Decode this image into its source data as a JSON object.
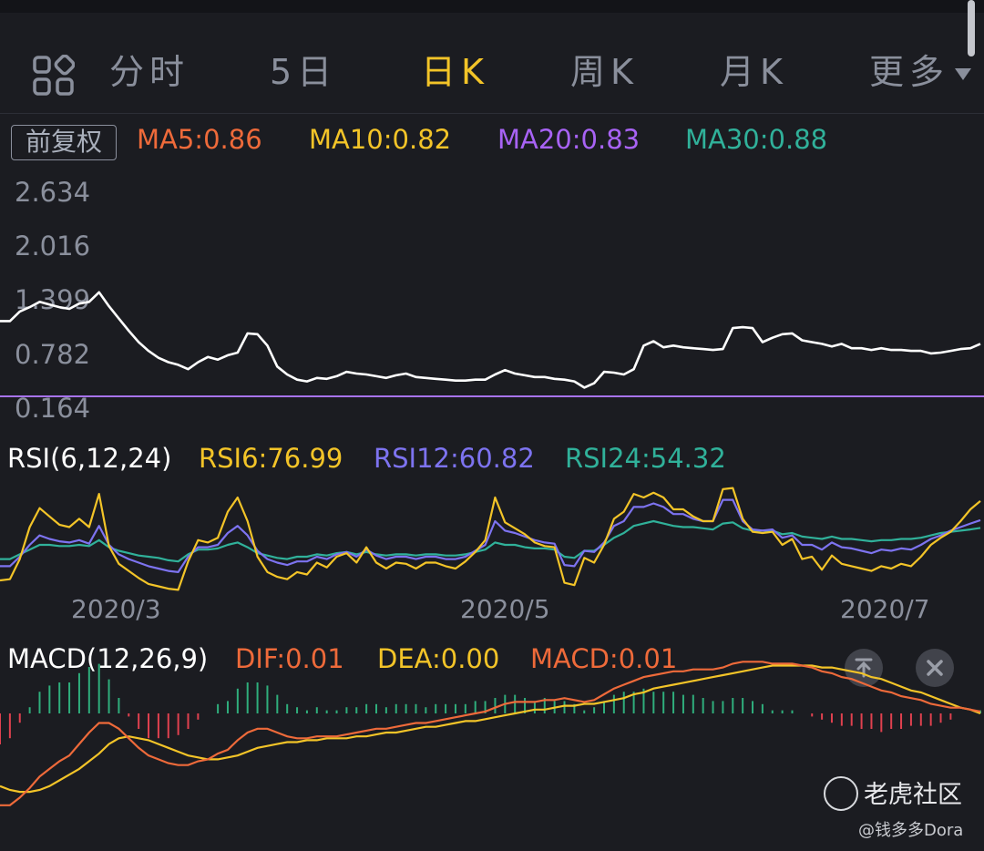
{
  "tabs": {
    "items": [
      {
        "label": "分时",
        "active": false
      },
      {
        "label": "5日",
        "active": false
      },
      {
        "label": "日K",
        "active": true
      },
      {
        "label": "周K",
        "active": false
      },
      {
        "label": "月K",
        "active": false
      },
      {
        "label": "更多",
        "active": false
      }
    ],
    "menu_icon": "grid-icon",
    "more_icon": "caret-down-icon"
  },
  "price_panel": {
    "adjust_label": "前复权",
    "ma": [
      {
        "label": "MA5:0.86",
        "color": "#ee6a3a"
      },
      {
        "label": "MA10:0.82",
        "color": "#f3c428"
      },
      {
        "label": "MA20:0.83",
        "color": "#a863f5"
      },
      {
        "label": "MA30:0.88",
        "color": "#30b19a"
      }
    ]
  },
  "rsi_panel": {
    "title": "RSI(6,12,24)",
    "values": [
      {
        "label": "RSI6:76.99",
        "color": "#f3c428"
      },
      {
        "label": "RSI12:60.82",
        "color": "#7d73f0"
      },
      {
        "label": "RSI24:54.32",
        "color": "#30b19a"
      }
    ]
  },
  "macd_panel": {
    "title": "MACD(12,26,9)",
    "values": [
      {
        "label": "DIF:0.01",
        "color": "#ee6a3a"
      },
      {
        "label": "DEA:0.00",
        "color": "#f3c428"
      },
      {
        "label": "MACD:0.01",
        "color": "#ee6a3a"
      }
    ],
    "buttons": {
      "top_icon": "to-top-icon",
      "close_icon": "close-icon"
    }
  },
  "watermark": {
    "brand": "老虎社区",
    "user": "@钱多多Dora"
  },
  "chart_data": [
    {
      "type": "line",
      "name": "price",
      "yticks": [
        "2.634",
        "2.016",
        "1.399",
        "0.782",
        "0.164"
      ],
      "ylim": [
        0.164,
        2.634
      ],
      "x": [
        0,
        1,
        2,
        3,
        4,
        5,
        6,
        7,
        8,
        9,
        10,
        11,
        12,
        13,
        14,
        15,
        16,
        17,
        18,
        19,
        20,
        21,
        22,
        23,
        24,
        25,
        26,
        27,
        28,
        29,
        30,
        31,
        32,
        33,
        34,
        35,
        36,
        37,
        38,
        39,
        40,
        41,
        42,
        43,
        44,
        45,
        46,
        47,
        48,
        49,
        50,
        51,
        52,
        53,
        54,
        55,
        56,
        57,
        58,
        59,
        60,
        61,
        62,
        63,
        64,
        65,
        66,
        67,
        68,
        69,
        70,
        71,
        72,
        73,
        74,
        75,
        76,
        77,
        78,
        79,
        80,
        81,
        82,
        83,
        84,
        85,
        86,
        87,
        88,
        89,
        90,
        91,
        92,
        93,
        94,
        95,
        96,
        97,
        98,
        99
      ],
      "series": [
        {
          "color": "#ffffff",
          "values": [
            1.16,
            1.16,
            1.27,
            1.32,
            1.38,
            1.35,
            1.32,
            1.3,
            1.36,
            1.38,
            1.49,
            1.33,
            1.19,
            1.05,
            0.92,
            0.82,
            0.74,
            0.69,
            0.66,
            0.61,
            0.69,
            0.75,
            0.72,
            0.77,
            0.8,
            1.02,
            1.01,
            0.88,
            0.64,
            0.55,
            0.49,
            0.47,
            0.51,
            0.5,
            0.53,
            0.58,
            0.56,
            0.55,
            0.53,
            0.51,
            0.54,
            0.56,
            0.52,
            0.51,
            0.5,
            0.49,
            0.48,
            0.48,
            0.49,
            0.49,
            0.55,
            0.6,
            0.56,
            0.54,
            0.52,
            0.52,
            0.5,
            0.49,
            0.47,
            0.4,
            0.45,
            0.58,
            0.57,
            0.55,
            0.61,
            0.88,
            0.93,
            0.86,
            0.88,
            0.86,
            0.85,
            0.84,
            0.83,
            0.84,
            1.08,
            1.09,
            1.08,
            0.92,
            0.97,
            1.01,
            1.02,
            0.94,
            0.92,
            0.9,
            0.87,
            0.9,
            0.85,
            0.85,
            0.83,
            0.85,
            0.83,
            0.83,
            0.82,
            0.82,
            0.79,
            0.8,
            0.82,
            0.84,
            0.85,
            0.9
          ]
        }
      ],
      "hline": {
        "value": 0.3,
        "color": "#a873f0"
      }
    },
    {
      "type": "line",
      "name": "rsi",
      "xticks": [
        {
          "label": "2020/3",
          "x": 15
        },
        {
          "label": "2020/5",
          "x": 53
        },
        {
          "label": "2020/7",
          "x": 91
        }
      ],
      "ylim": [
        0,
        100
      ],
      "series": [
        {
          "name": "RSI6",
          "color": "#f3c428",
          "values": [
            10,
            11,
            28,
            55,
            71,
            64,
            57,
            55,
            62,
            55,
            83,
            39,
            24,
            18,
            12,
            7,
            5,
            3,
            2,
            26,
            44,
            42,
            46,
            68,
            80,
            60,
            30,
            17,
            13,
            11,
            17,
            15,
            25,
            21,
            30,
            33,
            25,
            38,
            25,
            20,
            25,
            24,
            20,
            25,
            25,
            22,
            20,
            26,
            34,
            44,
            80,
            59,
            54,
            49,
            42,
            39,
            38,
            8,
            6,
            29,
            25,
            40,
            62,
            68,
            83,
            80,
            84,
            80,
            70,
            70,
            64,
            60,
            60,
            87,
            88,
            62,
            51,
            50,
            51,
            40,
            45,
            28,
            30,
            19,
            31,
            24,
            22,
            20,
            18,
            22,
            20,
            24,
            22,
            30,
            40,
            46,
            51,
            60,
            70,
            76.99
          ]
        },
        {
          "name": "RSI12",
          "color": "#7d73f0",
          "values": [
            22,
            22,
            30,
            40,
            48,
            45,
            43,
            42,
            44,
            41,
            56,
            40,
            32,
            28,
            25,
            22,
            20,
            18,
            17,
            30,
            38,
            38,
            40,
            50,
            56,
            48,
            35,
            28,
            25,
            23,
            26,
            26,
            30,
            28,
            32,
            34,
            30,
            36,
            31,
            28,
            30,
            30,
            28,
            30,
            30,
            28,
            28,
            30,
            35,
            40,
            60,
            52,
            50,
            47,
            44,
            42,
            41,
            23,
            22,
            35,
            34,
            42,
            56,
            60,
            72,
            72,
            75,
            72,
            66,
            66,
            62,
            60,
            60,
            78,
            78,
            60,
            53,
            52,
            53,
            46,
            48,
            40,
            40,
            36,
            42,
            38,
            37,
            35,
            33,
            36,
            35,
            37,
            36,
            40,
            45,
            48,
            52,
            55,
            58,
            60.82
          ]
        },
        {
          "name": "RSI24",
          "color": "#30b19a",
          "values": [
            28,
            28,
            32,
            36,
            40,
            40,
            39,
            39,
            40,
            39,
            44,
            38,
            35,
            33,
            31,
            30,
            29,
            27,
            26,
            32,
            36,
            36,
            37,
            40,
            42,
            38,
            33,
            31,
            29,
            28,
            30,
            30,
            32,
            31,
            33,
            34,
            32,
            34,
            32,
            31,
            32,
            32,
            31,
            32,
            32,
            31,
            31,
            32,
            34,
            36,
            42,
            40,
            40,
            38,
            37,
            37,
            36,
            30,
            29,
            35,
            35,
            40,
            46,
            50,
            56,
            58,
            60,
            58,
            56,
            55,
            55,
            54,
            53,
            58,
            59,
            54,
            52,
            52,
            52,
            49,
            50,
            47,
            46,
            45,
            47,
            45,
            45,
            44,
            43,
            44,
            44,
            45,
            45,
            46,
            48,
            50,
            51,
            52,
            53,
            54.32
          ]
        }
      ]
    },
    {
      "type": "line",
      "name": "macd",
      "ylim": [
        -0.55,
        0.55
      ],
      "series": [
        {
          "name": "DIF",
          "color": "#ee6a3a",
          "values": [
            -0.48,
            -0.48,
            -0.44,
            -0.39,
            -0.33,
            -0.29,
            -0.25,
            -0.22,
            -0.16,
            -0.1,
            -0.05,
            -0.05,
            -0.08,
            -0.13,
            -0.18,
            -0.22,
            -0.24,
            -0.26,
            -0.27,
            -0.27,
            -0.25,
            -0.24,
            -0.21,
            -0.19,
            -0.14,
            -0.1,
            -0.08,
            -0.08,
            -0.1,
            -0.12,
            -0.13,
            -0.13,
            -0.12,
            -0.12,
            -0.12,
            -0.11,
            -0.1,
            -0.09,
            -0.08,
            -0.08,
            -0.07,
            -0.06,
            -0.05,
            -0.05,
            -0.04,
            -0.03,
            -0.02,
            -0.01,
            0.0,
            0.01,
            0.03,
            0.05,
            0.06,
            0.06,
            0.06,
            0.07,
            0.07,
            0.08,
            0.07,
            0.06,
            0.07,
            0.1,
            0.13,
            0.15,
            0.17,
            0.19,
            0.2,
            0.21,
            0.22,
            0.22,
            0.23,
            0.23,
            0.23,
            0.24,
            0.26,
            0.27,
            0.27,
            0.27,
            0.26,
            0.26,
            0.26,
            0.25,
            0.24,
            0.22,
            0.21,
            0.19,
            0.18,
            0.16,
            0.14,
            0.12,
            0.11,
            0.09,
            0.08,
            0.07,
            0.05,
            0.04,
            0.03,
            0.03,
            0.02,
            0.01
          ]
        },
        {
          "name": "DEA",
          "color": "#f3c428",
          "values": [
            -0.38,
            -0.4,
            -0.41,
            -0.41,
            -0.4,
            -0.38,
            -0.35,
            -0.32,
            -0.29,
            -0.25,
            -0.21,
            -0.16,
            -0.13,
            -0.12,
            -0.13,
            -0.14,
            -0.16,
            -0.18,
            -0.2,
            -0.22,
            -0.23,
            -0.24,
            -0.24,
            -0.23,
            -0.22,
            -0.2,
            -0.18,
            -0.17,
            -0.16,
            -0.15,
            -0.15,
            -0.14,
            -0.14,
            -0.13,
            -0.13,
            -0.13,
            -0.12,
            -0.12,
            -0.11,
            -0.1,
            -0.1,
            -0.09,
            -0.08,
            -0.07,
            -0.07,
            -0.06,
            -0.05,
            -0.04,
            -0.04,
            -0.03,
            -0.02,
            -0.01,
            0.0,
            0.01,
            0.02,
            0.02,
            0.03,
            0.04,
            0.04,
            0.05,
            0.05,
            0.06,
            0.07,
            0.08,
            0.1,
            0.11,
            0.13,
            0.14,
            0.15,
            0.16,
            0.17,
            0.18,
            0.19,
            0.2,
            0.21,
            0.22,
            0.23,
            0.24,
            0.25,
            0.25,
            0.25,
            0.25,
            0.25,
            0.24,
            0.24,
            0.23,
            0.22,
            0.21,
            0.19,
            0.18,
            0.16,
            0.14,
            0.12,
            0.11,
            0.09,
            0.07,
            0.05,
            0.03,
            0.02,
            0.0
          ]
        }
      ]
    }
  ]
}
